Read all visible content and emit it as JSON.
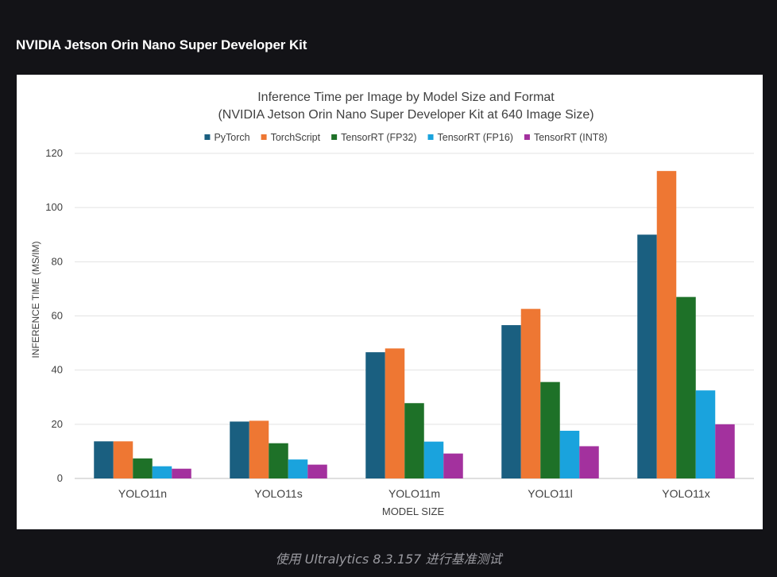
{
  "page": {
    "heading": "NVIDIA Jetson Orin Nano Super Developer Kit",
    "caption": "使用 Ultralytics 8.3.157 进行基准测试"
  },
  "chart_data": {
    "type": "bar",
    "title": "Inference Time per Image by Model Size and Format",
    "subtitle": "(NVIDIA Jetson Orin Nano Super Developer Kit at 640 Image Size)",
    "xlabel": "MODEL SIZE",
    "ylabel": "INFERENCE TIME (MS/IM)",
    "ylim": [
      0,
      120
    ],
    "yticks": [
      0,
      20,
      40,
      60,
      80,
      100,
      120
    ],
    "grid": true,
    "legend_position": "top",
    "categories": [
      "YOLO11n",
      "YOLO11s",
      "YOLO11m",
      "YOLO11l",
      "YOLO11x"
    ],
    "series": [
      {
        "name": "PyTorch",
        "color": "#1a5f80",
        "values": [
          13.7,
          21.0,
          46.6,
          56.6,
          90.0
        ]
      },
      {
        "name": "TorchScript",
        "color": "#ee7733",
        "values": [
          13.7,
          21.3,
          48.0,
          62.6,
          113.5
        ]
      },
      {
        "name": "TensorRT (FP32)",
        "color": "#1e7128",
        "values": [
          7.4,
          13.0,
          27.8,
          35.6,
          67.0
        ]
      },
      {
        "name": "TensorRT (FP16)",
        "color": "#1aa3dd",
        "values": [
          4.5,
          7.0,
          13.6,
          17.6,
          32.5
        ]
      },
      {
        "name": "TensorRT (INT8)",
        "color": "#a3319e",
        "values": [
          3.6,
          5.1,
          9.2,
          11.9,
          20.0
        ]
      }
    ]
  }
}
